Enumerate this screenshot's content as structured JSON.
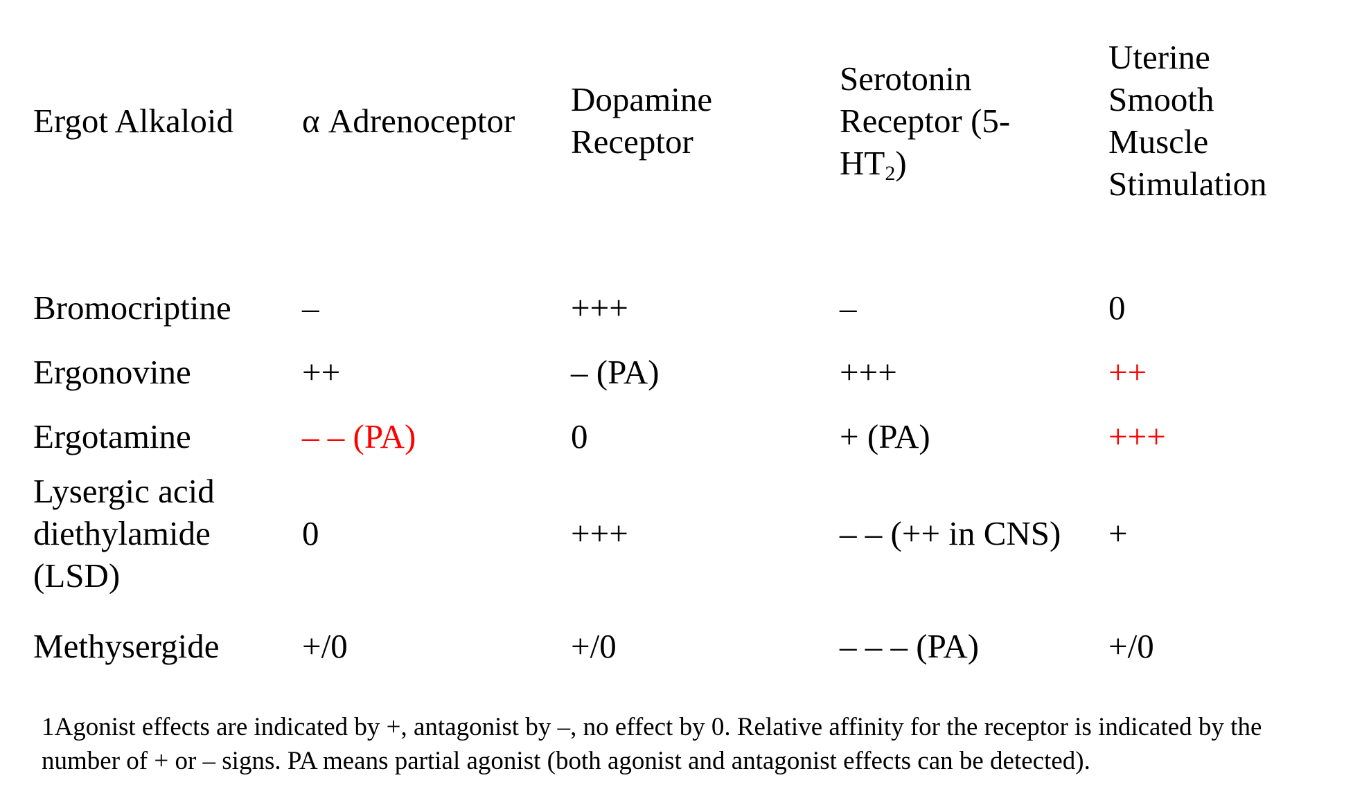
{
  "table": {
    "headers": {
      "col0": "Ergot Alkaloid",
      "col1": "α Adrenoceptor",
      "col2": "Dopamine Receptor",
      "col3_main": "Serotonin Receptor (5-HT",
      "col3_sub": "2",
      "col3_end": ")",
      "col4": "Uterine Smooth Muscle Stimulation"
    },
    "rows": [
      {
        "name": "Bromocriptine",
        "alpha": "–",
        "dopamine": "+++",
        "serotonin": "–",
        "uterine": "0",
        "alpha_color": "#000000",
        "uterine_color": "#000000"
      },
      {
        "name": "Ergonovine",
        "alpha": "++",
        "dopamine": "– (PA)",
        "serotonin": "+++",
        "uterine": "++",
        "alpha_color": "#000000",
        "uterine_color": "#ff0000"
      },
      {
        "name": "Ergotamine",
        "alpha": "– – (PA)",
        "dopamine": "0",
        "serotonin": "+ (PA)",
        "uterine": "+++",
        "alpha_color": "#ff0000",
        "uterine_color": "#ff0000"
      },
      {
        "name": "Lysergic acid diethylamide (LSD)",
        "alpha": "0",
        "dopamine": "+++",
        "serotonin": "– – (++ in CNS)",
        "uterine": "+",
        "alpha_color": "#000000",
        "uterine_color": "#000000"
      },
      {
        "name": "Methysergide",
        "alpha": "+/0",
        "dopamine": "+/0",
        "serotonin": "– – – (PA)",
        "uterine": "+/0",
        "alpha_color": "#000000",
        "uterine_color": "#000000"
      }
    ]
  },
  "footnote": "1Agonist effects are indicated by +, antagonist by –, no effect by 0. Relative affinity for the receptor is indicated by the number of + or – signs. PA means partial agonist (both agonist and antagonist effects can be detected).",
  "colors": {
    "text": "#000000",
    "highlight": "#ff0000",
    "background": "#ffffff"
  }
}
